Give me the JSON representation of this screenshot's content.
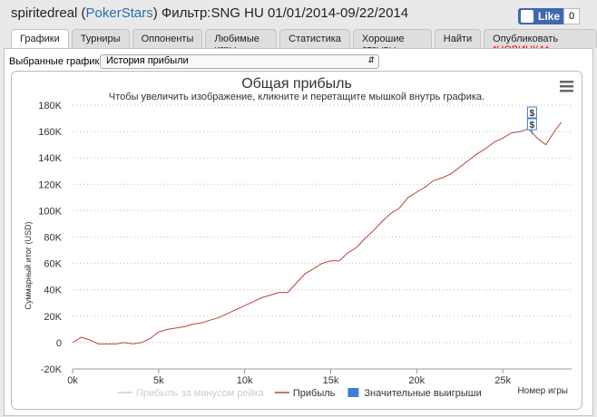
{
  "header": {
    "title_parts": [
      "spiritedreal (",
      "PokerStars",
      ") Фильтр:SNG HU 01/01/2014-09/22/2014"
    ],
    "like": "Like",
    "like_count": "0"
  },
  "tabs": [
    "Графики",
    "Турниры",
    "Оппоненты",
    "Любимые игры",
    "Статистика",
    "Хорошие отзывы",
    "Найти",
    "Опубликовать"
  ],
  "tab_badge": "*НОВИНКА*",
  "selector": {
    "label": "Выбранные графики:",
    "value": "История прибыли"
  },
  "chart_data": {
    "type": "line",
    "title": "Общая прибыль",
    "subtitle": "Чтобы увеличить изображение, кликните и перетащите мышкой внутрь графика.",
    "y_label": "Суммарный итог (USD)",
    "x_label": "Номер игры",
    "xlim": [
      0,
      29000
    ],
    "ylim": [
      -20000,
      180000
    ],
    "xticks": [
      {
        "value": 0,
        "label": "0k"
      },
      {
        "value": 5000,
        "label": "5k"
      },
      {
        "value": 10000,
        "label": "10k"
      },
      {
        "value": 15000,
        "label": "15k"
      },
      {
        "value": 20000,
        "label": "20k"
      },
      {
        "value": 25000,
        "label": "25k"
      }
    ],
    "yticks": [
      {
        "value": -20000,
        "label": "-20K"
      },
      {
        "value": 0,
        "label": "0"
      },
      {
        "value": 20000,
        "label": "20K"
      },
      {
        "value": 40000,
        "label": "40K"
      },
      {
        "value": 60000,
        "label": "60K"
      },
      {
        "value": 80000,
        "label": "80K"
      },
      {
        "value": 100000,
        "label": "100K"
      },
      {
        "value": 120000,
        "label": "120K"
      },
      {
        "value": 140000,
        "label": "140K"
      },
      {
        "value": 160000,
        "label": "160K"
      },
      {
        "value": 180000,
        "label": "180K"
      }
    ],
    "grid": true,
    "series": [
      {
        "name": "Прибыль за минусом рейка",
        "color": "#cccccc",
        "visible": false
      },
      {
        "name": "Прибыль",
        "color": "#b5453a",
        "x": [
          0,
          500,
          1000,
          1500,
          2000,
          2500,
          3000,
          3500,
          4000,
          4500,
          5000,
          5500,
          6000,
          6500,
          7000,
          7500,
          8000,
          8500,
          9000,
          9500,
          10000,
          10500,
          11000,
          11500,
          12000,
          12500,
          13000,
          13500,
          14000,
          14500,
          15000,
          15500,
          16000,
          16500,
          17000,
          17500,
          18000,
          18500,
          19000,
          19500,
          20000,
          20500,
          21000,
          21500,
          22000,
          22500,
          23000,
          23500,
          24000,
          24500,
          25000,
          25500,
          26000,
          26500,
          27000,
          27500,
          28000,
          28400
        ],
        "values": [
          0,
          4000,
          2000,
          -1000,
          -1000,
          -1000,
          0,
          -1000,
          0,
          3000,
          8000,
          10000,
          11000,
          12000,
          14000,
          15000,
          17000,
          19000,
          22000,
          25000,
          28000,
          31000,
          34000,
          36000,
          38000,
          38000,
          45000,
          52000,
          56000,
          60000,
          62000,
          62000,
          68000,
          72000,
          79000,
          85000,
          92000,
          98000,
          102000,
          110000,
          114000,
          118000,
          123000,
          125000,
          128000,
          133000,
          138000,
          143000,
          147000,
          152000,
          155000,
          159000,
          160000,
          162000,
          155000,
          150000,
          160000,
          167000
        ]
      },
      {
        "name": "Значительные выигрыши",
        "color": "#3d7fd6",
        "type": "flags",
        "x": [
          26700,
          26700
        ],
        "values": [
          158000,
          158000
        ],
        "labels": [
          "$",
          "$"
        ]
      }
    ]
  }
}
